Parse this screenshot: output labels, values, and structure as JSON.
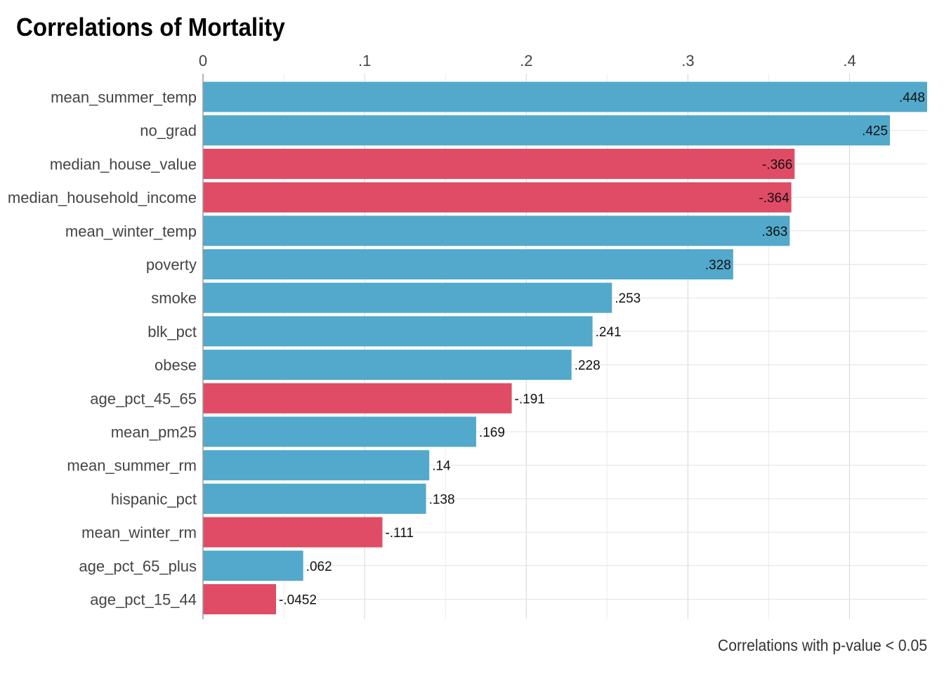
{
  "chart_data": {
    "type": "bar",
    "orientation": "horizontal",
    "title": "Correlations of Mortality",
    "caption": "Correlations with p-value < 0.05",
    "xlim": [
      0,
      0.448
    ],
    "x_ticks": [
      {
        "value": 0,
        "label": "0"
      },
      {
        "value": 0.1,
        "label": ".1"
      },
      {
        "value": 0.2,
        "label": ".2"
      },
      {
        "value": 0.3,
        "label": ".3"
      },
      {
        "value": 0.4,
        "label": ".4"
      }
    ],
    "x_axis_position": "top",
    "grid": true,
    "colors": {
      "positive": "#52a9cb",
      "negative": "#e04b66"
    },
    "categories": [
      "mean_summer_temp",
      "no_grad",
      "median_house_value",
      "median_household_income",
      "mean_winter_temp",
      "poverty",
      "smoke",
      "blk_pct",
      "obese",
      "age_pct_45_65",
      "mean_pm25",
      "mean_summer_rm",
      "hispanic_pct",
      "mean_winter_rm",
      "age_pct_65_plus",
      "age_pct_15_44"
    ],
    "values": [
      0.448,
      0.425,
      -0.366,
      -0.364,
      0.363,
      0.328,
      0.253,
      0.241,
      0.228,
      -0.191,
      0.169,
      0.14,
      0.138,
      -0.111,
      0.062,
      -0.0452
    ],
    "value_labels": [
      ".448",
      ".425",
      "-.366",
      "-.364",
      ".363",
      ".328",
      ".253",
      ".241",
      ".228",
      "-.191",
      ".169",
      ".14",
      ".138",
      "-.111",
      ".062",
      "-.0452"
    ]
  }
}
